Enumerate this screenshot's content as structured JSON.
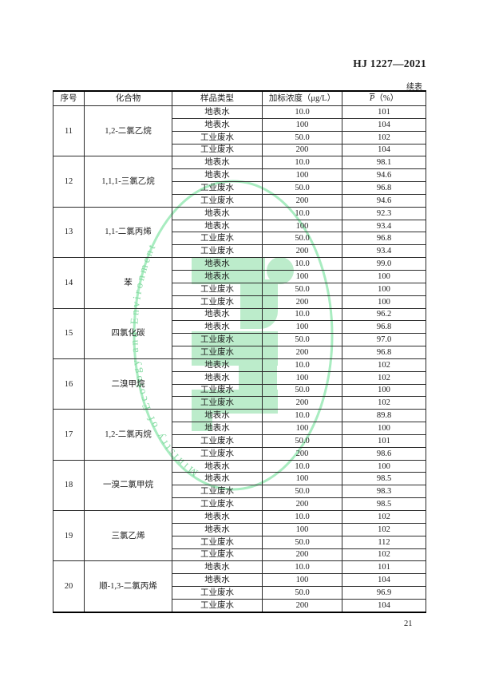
{
  "page": {
    "standard_code": "HJ 1227—2021",
    "continuation_label": "续表",
    "page_number": "21"
  },
  "table": {
    "headers": {
      "index": "序号",
      "compound": "化合物",
      "sample_type": "样品类型",
      "spike_conc": "加标浓度（μg/L）",
      "recovery_p": "P",
      "recovery_suffix": "（%）"
    },
    "rows": [
      {
        "no": "11",
        "compound": "1,2-二氯乙烷",
        "entries": [
          {
            "type": "地表水",
            "conc": "10.0",
            "p": "101"
          },
          {
            "type": "地表水",
            "conc": "100",
            "p": "104"
          },
          {
            "type": "工业废水",
            "conc": "50.0",
            "p": "102"
          },
          {
            "type": "工业废水",
            "conc": "200",
            "p": "104"
          }
        ]
      },
      {
        "no": "12",
        "compound": "1,1,1-三氯乙烷",
        "entries": [
          {
            "type": "地表水",
            "conc": "10.0",
            "p": "98.1"
          },
          {
            "type": "地表水",
            "conc": "100",
            "p": "94.6"
          },
          {
            "type": "工业废水",
            "conc": "50.0",
            "p": "96.8"
          },
          {
            "type": "工业废水",
            "conc": "200",
            "p": "94.6"
          }
        ]
      },
      {
        "no": "13",
        "compound": "1,1-二氯丙烯",
        "entries": [
          {
            "type": "地表水",
            "conc": "10.0",
            "p": "92.3"
          },
          {
            "type": "地表水",
            "conc": "100",
            "p": "93.4"
          },
          {
            "type": "工业废水",
            "conc": "50.0",
            "p": "96.8"
          },
          {
            "type": "工业废水",
            "conc": "200",
            "p": "93.4"
          }
        ]
      },
      {
        "no": "14",
        "compound": "苯",
        "entries": [
          {
            "type": "地表水",
            "conc": "10.0",
            "p": "99.0"
          },
          {
            "type": "地表水",
            "conc": "100",
            "p": "100"
          },
          {
            "type": "工业废水",
            "conc": "50.0",
            "p": "100"
          },
          {
            "type": "工业废水",
            "conc": "200",
            "p": "100"
          }
        ]
      },
      {
        "no": "15",
        "compound": "四氯化碳",
        "entries": [
          {
            "type": "地表水",
            "conc": "10.0",
            "p": "96.2"
          },
          {
            "type": "地表水",
            "conc": "100",
            "p": "96.8"
          },
          {
            "type": "工业废水",
            "conc": "50.0",
            "p": "97.0"
          },
          {
            "type": "工业废水",
            "conc": "200",
            "p": "96.8"
          }
        ]
      },
      {
        "no": "16",
        "compound": "二溴甲烷",
        "entries": [
          {
            "type": "地表水",
            "conc": "10.0",
            "p": "102"
          },
          {
            "type": "地表水",
            "conc": "100",
            "p": "102"
          },
          {
            "type": "工业废水",
            "conc": "50.0",
            "p": "100"
          },
          {
            "type": "工业废水",
            "conc": "200",
            "p": "102"
          }
        ]
      },
      {
        "no": "17",
        "compound": "1,2-二氯丙烷",
        "entries": [
          {
            "type": "地表水",
            "conc": "10.0",
            "p": "89.8"
          },
          {
            "type": "地表水",
            "conc": "100",
            "p": "100"
          },
          {
            "type": "工业废水",
            "conc": "50.0",
            "p": "101"
          },
          {
            "type": "工业废水",
            "conc": "200",
            "p": "98.6"
          }
        ]
      },
      {
        "no": "18",
        "compound": "一溴二氯甲烷",
        "entries": [
          {
            "type": "地表水",
            "conc": "10.0",
            "p": "100"
          },
          {
            "type": "地表水",
            "conc": "100",
            "p": "98.5"
          },
          {
            "type": "工业废水",
            "conc": "50.0",
            "p": "98.3"
          },
          {
            "type": "工业废水",
            "conc": "200",
            "p": "98.5"
          }
        ]
      },
      {
        "no": "19",
        "compound": "三氯乙烯",
        "entries": [
          {
            "type": "地表水",
            "conc": "10.0",
            "p": "102"
          },
          {
            "type": "地表水",
            "conc": "100",
            "p": "102"
          },
          {
            "type": "工业废水",
            "conc": "50.0",
            "p": "112"
          },
          {
            "type": "工业废水",
            "conc": "200",
            "p": "102"
          }
        ]
      },
      {
        "no": "20",
        "compound": "顺-1,3-二氯丙烯",
        "entries": [
          {
            "type": "地表水",
            "conc": "10.0",
            "p": "101"
          },
          {
            "type": "地表水",
            "conc": "100",
            "p": "104"
          },
          {
            "type": "工业废水",
            "conc": "50.0",
            "p": "96.9"
          },
          {
            "type": "工业废水",
            "conc": "200",
            "p": "104"
          }
        ]
      }
    ]
  },
  "watermark": {
    "ring_text": "Ministry of Ecology and Environment",
    "colors": {
      "ring": "#a8ecc0",
      "fill": "#bceccb",
      "text": "#85daa2"
    }
  }
}
